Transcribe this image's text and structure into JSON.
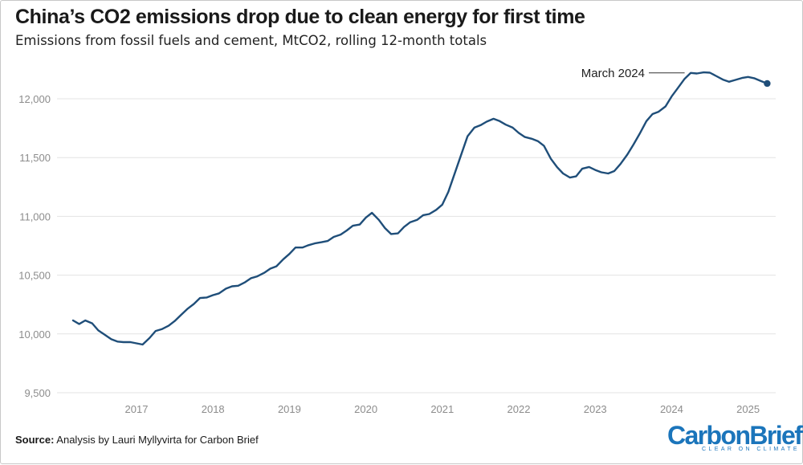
{
  "title": "China’s CO2 emissions drop due to clean energy for first time",
  "subtitle": "Emissions from fossil fuels and cement, MtCO2, rolling 12-month totals",
  "source_label": "Source:",
  "source_text": " Analysis by Lauri Myllyvirta for Carbon Brief",
  "logo": {
    "text": "CarbonBrief",
    "tagline": "CLEAR ON CLIMATE",
    "color": "#1b75bb"
  },
  "colors": {
    "line": "#1f4e79",
    "grid": "#e3e3e3",
    "axis_text": "#8c8c8c"
  },
  "chart_data": {
    "type": "line",
    "title": "",
    "xlabel": "",
    "ylabel": "",
    "ylim": [
      9500,
      12250
    ],
    "yticks": [
      9500,
      10000,
      10500,
      11000,
      11500,
      12000
    ],
    "ytick_labels": [
      "9,500",
      "10,000",
      "10,500",
      "11,000",
      "11,500",
      "12,000"
    ],
    "xticks": [
      2017,
      2018,
      2019,
      2020,
      2021,
      2022,
      2023,
      2024,
      2025
    ],
    "xtick_labels": [
      "2017",
      "2018",
      "2019",
      "2020",
      "2021",
      "2022",
      "2023",
      "2024",
      "2025"
    ],
    "grid": true,
    "annotation": {
      "text": "March 2024",
      "x": 2024.17,
      "y": 12220
    },
    "endpoint_marker": {
      "x": 2025.25,
      "y": 12130
    },
    "series": [
      {
        "x": [
          2016.17,
          2016.25,
          2016.33,
          2016.42,
          2016.5,
          2016.58,
          2016.67,
          2016.75,
          2016.83,
          2016.92,
          2017.0,
          2017.08,
          2017.17,
          2017.25,
          2017.33,
          2017.42,
          2017.5,
          2017.58,
          2017.67,
          2017.75,
          2017.83,
          2017.92,
          2018.0,
          2018.08,
          2018.17,
          2018.25,
          2018.33,
          2018.42,
          2018.5,
          2018.58,
          2018.67,
          2018.75,
          2018.83,
          2018.92,
          2019.0,
          2019.08,
          2019.17,
          2019.25,
          2019.33,
          2019.42,
          2019.5,
          2019.58,
          2019.67,
          2019.75,
          2019.83,
          2019.92,
          2020.0,
          2020.08,
          2020.17,
          2020.25,
          2020.33,
          2020.42,
          2020.5,
          2020.58,
          2020.67,
          2020.75,
          2020.83,
          2020.92,
          2021.0,
          2021.08,
          2021.17,
          2021.25,
          2021.33,
          2021.42,
          2021.5,
          2021.58,
          2021.67,
          2021.75,
          2021.83,
          2021.92,
          2022.0,
          2022.08,
          2022.17,
          2022.25,
          2022.33,
          2022.42,
          2022.5,
          2022.58,
          2022.67,
          2022.75,
          2022.83,
          2022.92,
          2023.0,
          2023.08,
          2023.17,
          2023.25,
          2023.33,
          2023.42,
          2023.5,
          2023.58,
          2023.67,
          2023.75,
          2023.83,
          2023.92,
          2024.0,
          2024.08,
          2024.17,
          2024.25,
          2024.33,
          2024.42,
          2024.5,
          2024.58,
          2024.67,
          2024.75,
          2024.83,
          2024.92,
          2025.0,
          2025.08,
          2025.17,
          2025.25
        ],
        "values": [
          10115,
          10085,
          10115,
          10090,
          10030,
          9995,
          9955,
          9935,
          9930,
          9930,
          9920,
          9910,
          9965,
          10025,
          10040,
          10070,
          10110,
          10160,
          10215,
          10255,
          10305,
          10310,
          10330,
          10345,
          10385,
          10405,
          10410,
          10440,
          10475,
          10490,
          10520,
          10555,
          10575,
          10635,
          10680,
          10735,
          10735,
          10755,
          10770,
          10780,
          10790,
          10825,
          10845,
          10880,
          10920,
          10930,
          10990,
          11030,
          10970,
          10900,
          10850,
          10855,
          10910,
          10950,
          10970,
          11010,
          11020,
          11055,
          11100,
          11210,
          11380,
          11530,
          11680,
          11755,
          11775,
          11805,
          11830,
          11810,
          11780,
          11755,
          11710,
          11675,
          11660,
          11640,
          11600,
          11490,
          11420,
          11365,
          11330,
          11340,
          11405,
          11420,
          11395,
          11375,
          11365,
          11385,
          11445,
          11525,
          11610,
          11700,
          11810,
          11870,
          11890,
          11935,
          12020,
          12090,
          12170,
          12220,
          12215,
          12225,
          12222,
          12195,
          12163,
          12145,
          12160,
          12177,
          12186,
          12175,
          12150,
          12130
        ]
      }
    ]
  }
}
